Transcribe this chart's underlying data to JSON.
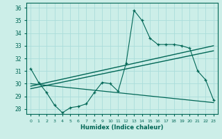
{
  "title": "",
  "xlabel": "Humidex (Indice chaleur)",
  "bg_color": "#cceee8",
  "grid_color": "#aaddda",
  "line_color": "#006655",
  "x_values": [
    0,
    1,
    2,
    3,
    4,
    5,
    6,
    7,
    8,
    9,
    10,
    11,
    12,
    13,
    14,
    15,
    16,
    17,
    18,
    19,
    20,
    21,
    22,
    23
  ],
  "curve1": [
    31.2,
    30.1,
    29.3,
    28.3,
    27.7,
    28.1,
    28.2,
    28.4,
    29.3,
    30.1,
    30.0,
    29.4,
    31.6,
    35.8,
    35.0,
    33.6,
    33.1,
    33.1,
    33.1,
    33.0,
    32.8,
    31.0,
    30.3,
    28.7
  ],
  "curve2_x": [
    0,
    23
  ],
  "curve2_y": [
    30.0,
    28.5
  ],
  "curve3_x": [
    0,
    23
  ],
  "curve3_y": [
    29.8,
    33.0
  ],
  "curve4_x": [
    0,
    23
  ],
  "curve4_y": [
    29.6,
    32.6
  ],
  "ylim": [
    27.6,
    36.4
  ],
  "xlim": [
    -0.5,
    23.5
  ],
  "yticks": [
    28,
    29,
    30,
    31,
    32,
    33,
    34,
    35,
    36
  ],
  "xticks": [
    0,
    1,
    2,
    3,
    4,
    5,
    6,
    7,
    8,
    9,
    10,
    11,
    12,
    13,
    14,
    15,
    16,
    17,
    18,
    19,
    20,
    21,
    22,
    23
  ],
  "xticklabels": [
    "0",
    "1",
    "2",
    "3",
    "4",
    "5",
    "6",
    "7",
    "8",
    "9",
    "10",
    "11",
    "12",
    "13",
    "14",
    "15",
    "16",
    "17",
    "18",
    "19",
    "20",
    "21",
    "22",
    "23"
  ]
}
